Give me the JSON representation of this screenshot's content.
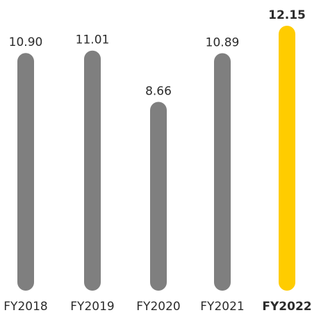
{
  "chart_data": {
    "type": "bar",
    "title": "",
    "xlabel": "",
    "ylabel": "",
    "categories": [
      "FY2018",
      "FY2019",
      "FY2020",
      "FY2021",
      "FY2022"
    ],
    "values": [
      10.9,
      11.01,
      8.66,
      10.89,
      12.15
    ],
    "value_labels": [
      "10.90",
      "11.01",
      "8.66",
      "10.89",
      "12.15"
    ],
    "highlight_index": 4,
    "ylim": [
      0,
      12.15
    ],
    "grid": false,
    "colors": {
      "default_bar": "#7f7f7f",
      "highlight_bar": "#ffcc00",
      "text": "#2b2b2b"
    }
  }
}
